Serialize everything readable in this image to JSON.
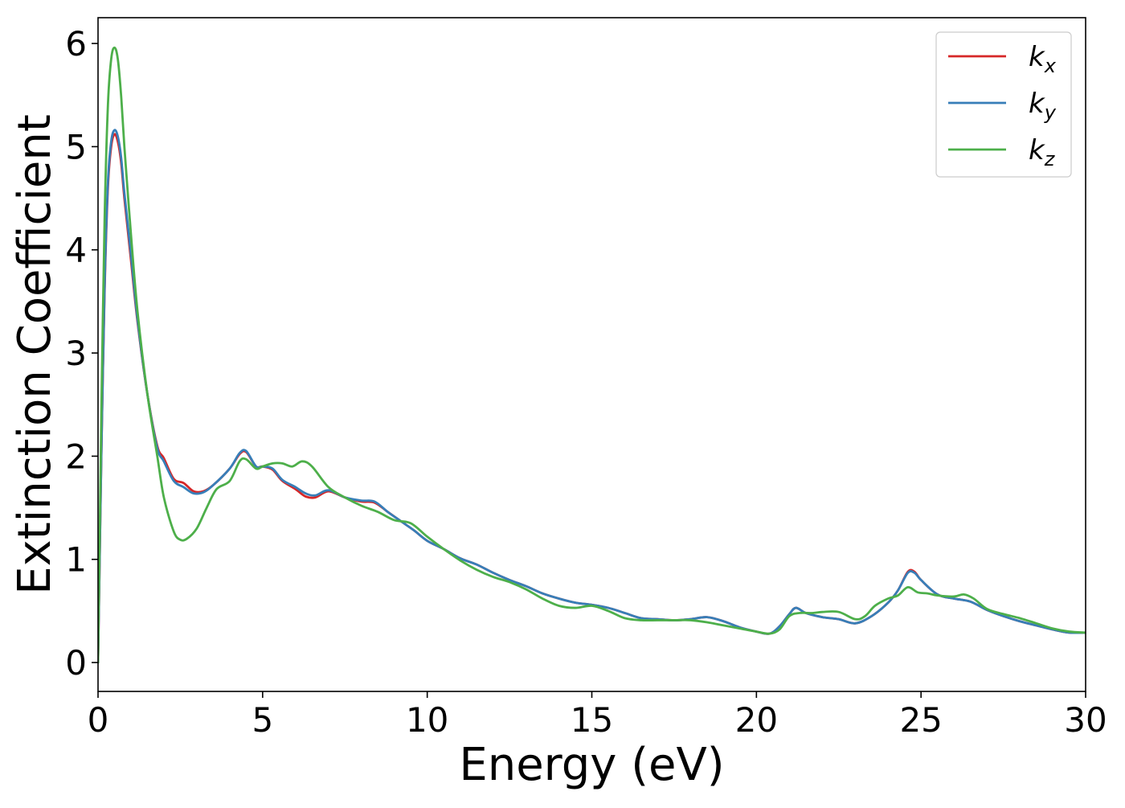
{
  "chart_data": {
    "type": "line",
    "xlabel": "Energy (eV)",
    "ylabel": "Extinction Coefficient",
    "xlim": [
      0,
      30
    ],
    "ylim": [
      -0.28,
      6.25
    ],
    "xticks": [
      0,
      5,
      10,
      15,
      20,
      25,
      30
    ],
    "yticks": [
      0,
      1,
      2,
      3,
      4,
      5,
      6
    ],
    "grid": false,
    "legend_position": "top-right",
    "series": [
      {
        "name": "k_x",
        "label_main": "k",
        "label_sub": "x",
        "color": "#d62728",
        "x": [
          0,
          0.05,
          0.1,
          0.2,
          0.3,
          0.4,
          0.5,
          0.6,
          0.7,
          0.8,
          1.0,
          1.2,
          1.5,
          1.8,
          2.0,
          2.3,
          2.6,
          2.9,
          3.2,
          3.5,
          4.0,
          4.3,
          4.5,
          4.8,
          5.0,
          5.3,
          5.6,
          6.0,
          6.3,
          6.6,
          7.0,
          7.5,
          8.0,
          8.4,
          8.8,
          9.2,
          9.6,
          10.0,
          10.5,
          11.0,
          11.5,
          12.0,
          12.5,
          13.0,
          13.5,
          14.0,
          14.5,
          15.0,
          15.5,
          16.0,
          16.5,
          17.0,
          17.5,
          18.0,
          18.5,
          19.0,
          19.5,
          20.0,
          20.4,
          20.7,
          21.0,
          21.2,
          21.5,
          22.0,
          22.5,
          23.0,
          23.5,
          24.0,
          24.3,
          24.6,
          24.8,
          25.0,
          25.5,
          26.0,
          26.5,
          27.0,
          27.5,
          28.0,
          28.5,
          29.0,
          29.5,
          30.0
        ],
        "values": [
          0.0,
          1.0,
          2.0,
          3.6,
          4.6,
          5.0,
          5.12,
          5.05,
          4.85,
          4.5,
          3.9,
          3.3,
          2.6,
          2.1,
          1.98,
          1.78,
          1.74,
          1.66,
          1.66,
          1.72,
          1.88,
          2.02,
          2.04,
          1.9,
          1.9,
          1.87,
          1.76,
          1.68,
          1.61,
          1.6,
          1.66,
          1.6,
          1.56,
          1.55,
          1.46,
          1.37,
          1.28,
          1.18,
          1.1,
          1.01,
          0.95,
          0.87,
          0.8,
          0.74,
          0.67,
          0.62,
          0.58,
          0.56,
          0.53,
          0.48,
          0.43,
          0.42,
          0.41,
          0.42,
          0.44,
          0.4,
          0.34,
          0.3,
          0.28,
          0.35,
          0.47,
          0.53,
          0.48,
          0.44,
          0.42,
          0.38,
          0.45,
          0.58,
          0.7,
          0.88,
          0.88,
          0.8,
          0.66,
          0.62,
          0.59,
          0.51,
          0.45,
          0.4,
          0.36,
          0.32,
          0.29,
          0.29
        ]
      },
      {
        "name": "k_y",
        "label_main": "k",
        "label_sub": "y",
        "color": "#377eb8",
        "x": [
          0,
          0.05,
          0.1,
          0.2,
          0.3,
          0.4,
          0.5,
          0.6,
          0.7,
          0.8,
          1.0,
          1.2,
          1.5,
          1.8,
          2.0,
          2.3,
          2.6,
          2.9,
          3.2,
          3.5,
          4.0,
          4.3,
          4.5,
          4.8,
          5.0,
          5.3,
          5.6,
          6.0,
          6.3,
          6.6,
          7.0,
          7.5,
          8.0,
          8.4,
          8.8,
          9.2,
          9.6,
          10.0,
          10.5,
          11.0,
          11.5,
          12.0,
          12.5,
          13.0,
          13.5,
          14.0,
          14.5,
          15.0,
          15.5,
          16.0,
          16.5,
          17.0,
          17.5,
          18.0,
          18.5,
          19.0,
          19.5,
          20.0,
          20.4,
          20.7,
          21.0,
          21.2,
          21.5,
          22.0,
          22.5,
          23.0,
          23.5,
          24.0,
          24.3,
          24.6,
          24.8,
          25.0,
          25.5,
          26.0,
          26.5,
          27.0,
          27.5,
          28.0,
          28.5,
          29.0,
          29.5,
          30.0
        ],
        "values": [
          0.0,
          1.0,
          2.0,
          3.65,
          4.65,
          5.05,
          5.16,
          5.1,
          4.9,
          4.55,
          3.95,
          3.32,
          2.6,
          2.08,
          1.95,
          1.76,
          1.7,
          1.64,
          1.65,
          1.72,
          1.88,
          2.03,
          2.05,
          1.9,
          1.9,
          1.88,
          1.77,
          1.7,
          1.64,
          1.62,
          1.67,
          1.6,
          1.57,
          1.56,
          1.46,
          1.37,
          1.28,
          1.18,
          1.1,
          1.01,
          0.95,
          0.87,
          0.8,
          0.74,
          0.67,
          0.62,
          0.58,
          0.56,
          0.53,
          0.48,
          0.43,
          0.42,
          0.41,
          0.42,
          0.44,
          0.4,
          0.34,
          0.3,
          0.28,
          0.35,
          0.47,
          0.53,
          0.48,
          0.44,
          0.42,
          0.38,
          0.45,
          0.58,
          0.7,
          0.87,
          0.87,
          0.8,
          0.66,
          0.62,
          0.59,
          0.51,
          0.45,
          0.4,
          0.36,
          0.32,
          0.29,
          0.29
        ]
      },
      {
        "name": "k_z",
        "label_main": "k",
        "label_sub": "z",
        "color": "#4daf4a",
        "x": [
          0,
          0.05,
          0.1,
          0.2,
          0.3,
          0.4,
          0.5,
          0.6,
          0.7,
          0.8,
          1.0,
          1.2,
          1.5,
          1.8,
          2.0,
          2.3,
          2.5,
          2.7,
          3.0,
          3.3,
          3.6,
          4.0,
          4.3,
          4.5,
          4.8,
          5.0,
          5.3,
          5.6,
          5.9,
          6.2,
          6.5,
          7.0,
          7.5,
          8.0,
          8.5,
          9.0,
          9.5,
          10.0,
          10.5,
          11.0,
          11.5,
          12.0,
          12.5,
          13.0,
          13.5,
          14.0,
          14.5,
          15.0,
          15.5,
          16.0,
          16.5,
          17.0,
          17.5,
          18.0,
          18.5,
          19.0,
          19.5,
          20.0,
          20.4,
          20.7,
          21.0,
          21.3,
          21.7,
          22.0,
          22.5,
          23.0,
          23.3,
          23.6,
          24.0,
          24.3,
          24.6,
          24.9,
          25.2,
          25.5,
          26.0,
          26.3,
          26.6,
          27.0,
          27.5,
          28.0,
          28.5,
          29.0,
          29.5,
          30.0
        ],
        "values": [
          0.0,
          1.2,
          2.4,
          4.3,
          5.4,
          5.85,
          5.96,
          5.85,
          5.5,
          5.0,
          4.15,
          3.4,
          2.6,
          2.0,
          1.6,
          1.27,
          1.19,
          1.2,
          1.3,
          1.5,
          1.68,
          1.76,
          1.95,
          1.97,
          1.88,
          1.9,
          1.93,
          1.93,
          1.9,
          1.95,
          1.9,
          1.7,
          1.6,
          1.52,
          1.46,
          1.38,
          1.35,
          1.22,
          1.1,
          0.99,
          0.9,
          0.83,
          0.78,
          0.71,
          0.62,
          0.55,
          0.53,
          0.55,
          0.5,
          0.43,
          0.41,
          0.41,
          0.41,
          0.41,
          0.39,
          0.36,
          0.33,
          0.3,
          0.28,
          0.32,
          0.45,
          0.48,
          0.48,
          0.49,
          0.49,
          0.42,
          0.45,
          0.55,
          0.62,
          0.65,
          0.73,
          0.68,
          0.67,
          0.65,
          0.64,
          0.66,
          0.62,
          0.52,
          0.47,
          0.43,
          0.38,
          0.33,
          0.3,
          0.29
        ]
      }
    ]
  }
}
